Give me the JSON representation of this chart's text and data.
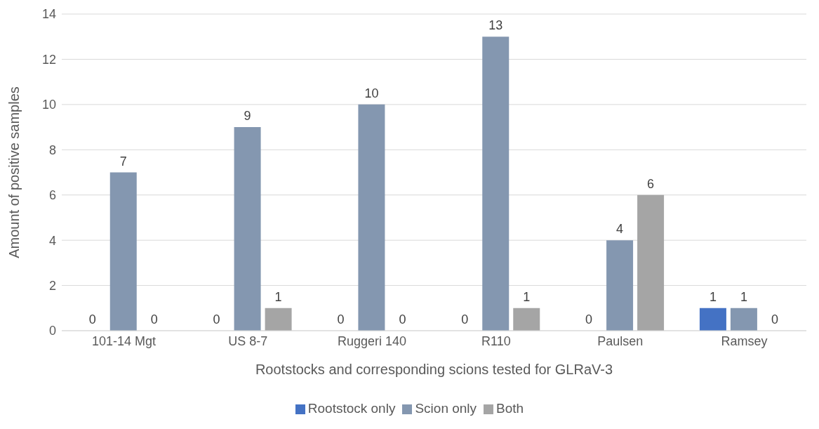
{
  "chart_data": {
    "type": "bar",
    "xlabel": "Rootstocks and corresponding scions tested for GLRaV-3",
    "ylabel": "Amount of positive samples",
    "categories": [
      "101-14 Mgt",
      "US 8-7",
      "Ruggeri 140",
      "R110",
      "Paulsen",
      "Ramsey"
    ],
    "series": [
      {
        "name": "Rootstock only",
        "color": "#4472c4",
        "values": [
          0,
          0,
          0,
          0,
          0,
          1
        ]
      },
      {
        "name": "Scion only",
        "color": "#8497b0",
        "values": [
          7,
          9,
          10,
          13,
          4,
          1
        ]
      },
      {
        "name": "Both",
        "color": "#a5a5a5",
        "values": [
          0,
          1,
          0,
          1,
          6,
          0
        ]
      }
    ],
    "ylim": [
      0,
      14
    ],
    "yticks": [
      0,
      2,
      4,
      6,
      8,
      10,
      12,
      14
    ],
    "grid": "y",
    "legend": "bottom",
    "data_labels": true
  }
}
